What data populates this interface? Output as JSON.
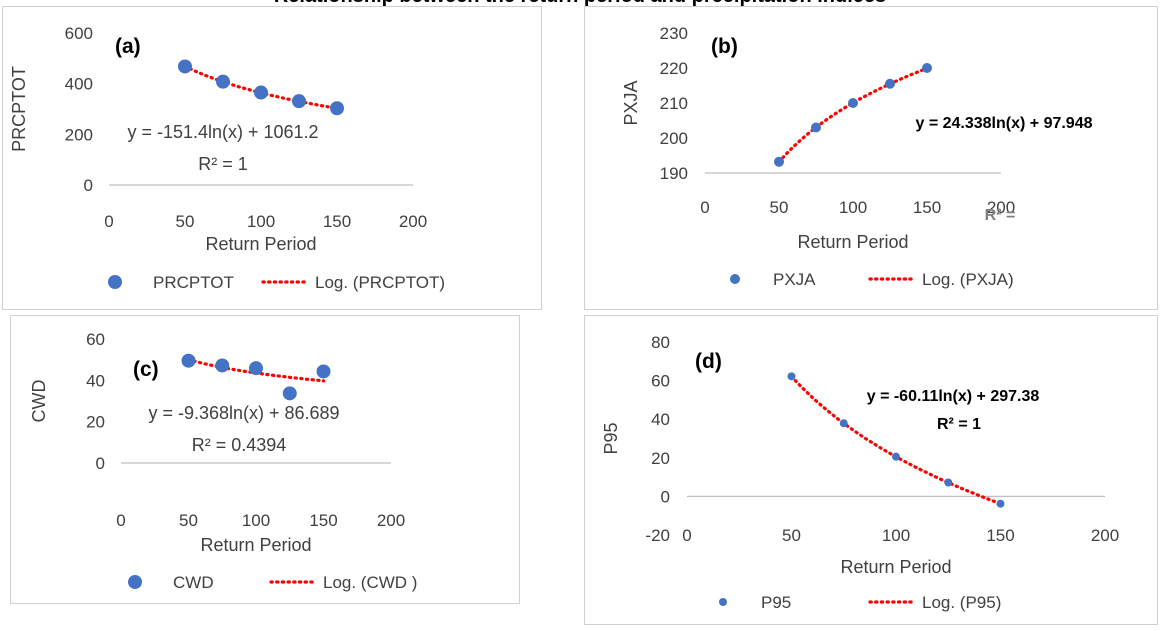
{
  "page": {
    "title": "Relationship between the return period and precipitation indices"
  },
  "chart_data": [
    {
      "id": "a",
      "type": "scatter",
      "panel_label": "(a)",
      "ylabel": "PRCPTOT",
      "xlabel": "Return Period",
      "xlim": [
        0,
        200
      ],
      "ylim": [
        0,
        600
      ],
      "xticks": [
        0,
        50,
        100,
        150,
        200
      ],
      "yticks": [
        0,
        200,
        400,
        600
      ],
      "series": [
        {
          "name": "PRCPTOT",
          "x": [
            50,
            75,
            100,
            125,
            150
          ],
          "y": [
            468,
            408,
            365,
            331,
            303
          ]
        }
      ],
      "trendline": {
        "name": "Log. (PRCPTOT)",
        "type": "log",
        "a": -151.4,
        "b": 1061.2,
        "x_range": [
          50,
          150
        ]
      },
      "equation": "y = -151.4ln(x) + 1061.2",
      "r2": "R² = 1",
      "grid": false,
      "legend": "bottom",
      "marker_color": "#4472c4",
      "trend_color": "#ff0000"
    },
    {
      "id": "b",
      "type": "scatter",
      "panel_label": "(b)",
      "ylabel": "PXJA",
      "xlabel": "Return Period",
      "xlim": [
        0,
        200
      ],
      "ylim": [
        190,
        230
      ],
      "xticks": [
        0,
        50,
        100,
        150,
        200
      ],
      "yticks": [
        190,
        200,
        210,
        220,
        230
      ],
      "series": [
        {
          "name": "PXJA",
          "x": [
            50,
            75,
            100,
            125,
            150
          ],
          "y": [
            193.2,
            203.0,
            210.0,
            215.5,
            220.0
          ]
        }
      ],
      "trendline": {
        "name": "Log. (PXJA)",
        "type": "log",
        "a": 24.338,
        "b": 97.948,
        "x_range": [
          50,
          150
        ]
      },
      "equation": "y = 24.338ln(x) + 97.948",
      "r2": "R² =",
      "grid": false,
      "legend": "bottom",
      "marker_color": "#4472c4",
      "trend_color": "#ff0000"
    },
    {
      "id": "c",
      "type": "scatter",
      "panel_label": "(c)",
      "ylabel": "CWD",
      "xlabel": "Return Period",
      "xlim": [
        0,
        200
      ],
      "ylim": [
        0,
        60
      ],
      "xticks": [
        0,
        50,
        100,
        150,
        200
      ],
      "yticks": [
        0,
        20,
        40,
        60
      ],
      "series": [
        {
          "name": "CWD",
          "x": [
            50,
            75,
            100,
            125,
            150
          ],
          "y": [
            49.5,
            47.2,
            45.9,
            33.7,
            44.3
          ]
        }
      ],
      "trendline": {
        "name": "Log. (CWD )",
        "type": "log",
        "a": -9.368,
        "b": 86.689,
        "x_range": [
          50,
          150
        ]
      },
      "equation": "y = -9.368ln(x) + 86.689",
      "r2": "R² = 0.4394",
      "grid": false,
      "legend": "bottom",
      "marker_color": "#4472c4",
      "trend_color": "#ff0000"
    },
    {
      "id": "d",
      "type": "scatter",
      "panel_label": "(d)",
      "ylabel": "P95",
      "xlabel": "Return Period",
      "xlim": [
        0,
        200
      ],
      "ylim": [
        -20,
        80
      ],
      "xticks": [
        0,
        50,
        100,
        150,
        200
      ],
      "yticks": [
        -20,
        0,
        20,
        40,
        60,
        80
      ],
      "series": [
        {
          "name": "P95",
          "x": [
            50,
            75,
            100,
            125,
            150
          ],
          "y": [
            62.2,
            37.9,
            20.6,
            7.2,
            -3.8
          ]
        }
      ],
      "trendline": {
        "name": "Log. (P95)",
        "type": "log",
        "a": -60.11,
        "b": 297.38,
        "x_range": [
          50,
          150
        ]
      },
      "equation": "y = -60.11ln(x) + 297.38",
      "r2": "R² = 1",
      "grid": false,
      "legend": "bottom",
      "marker_color": "#4472c4",
      "trend_color": "#ff0000"
    }
  ]
}
